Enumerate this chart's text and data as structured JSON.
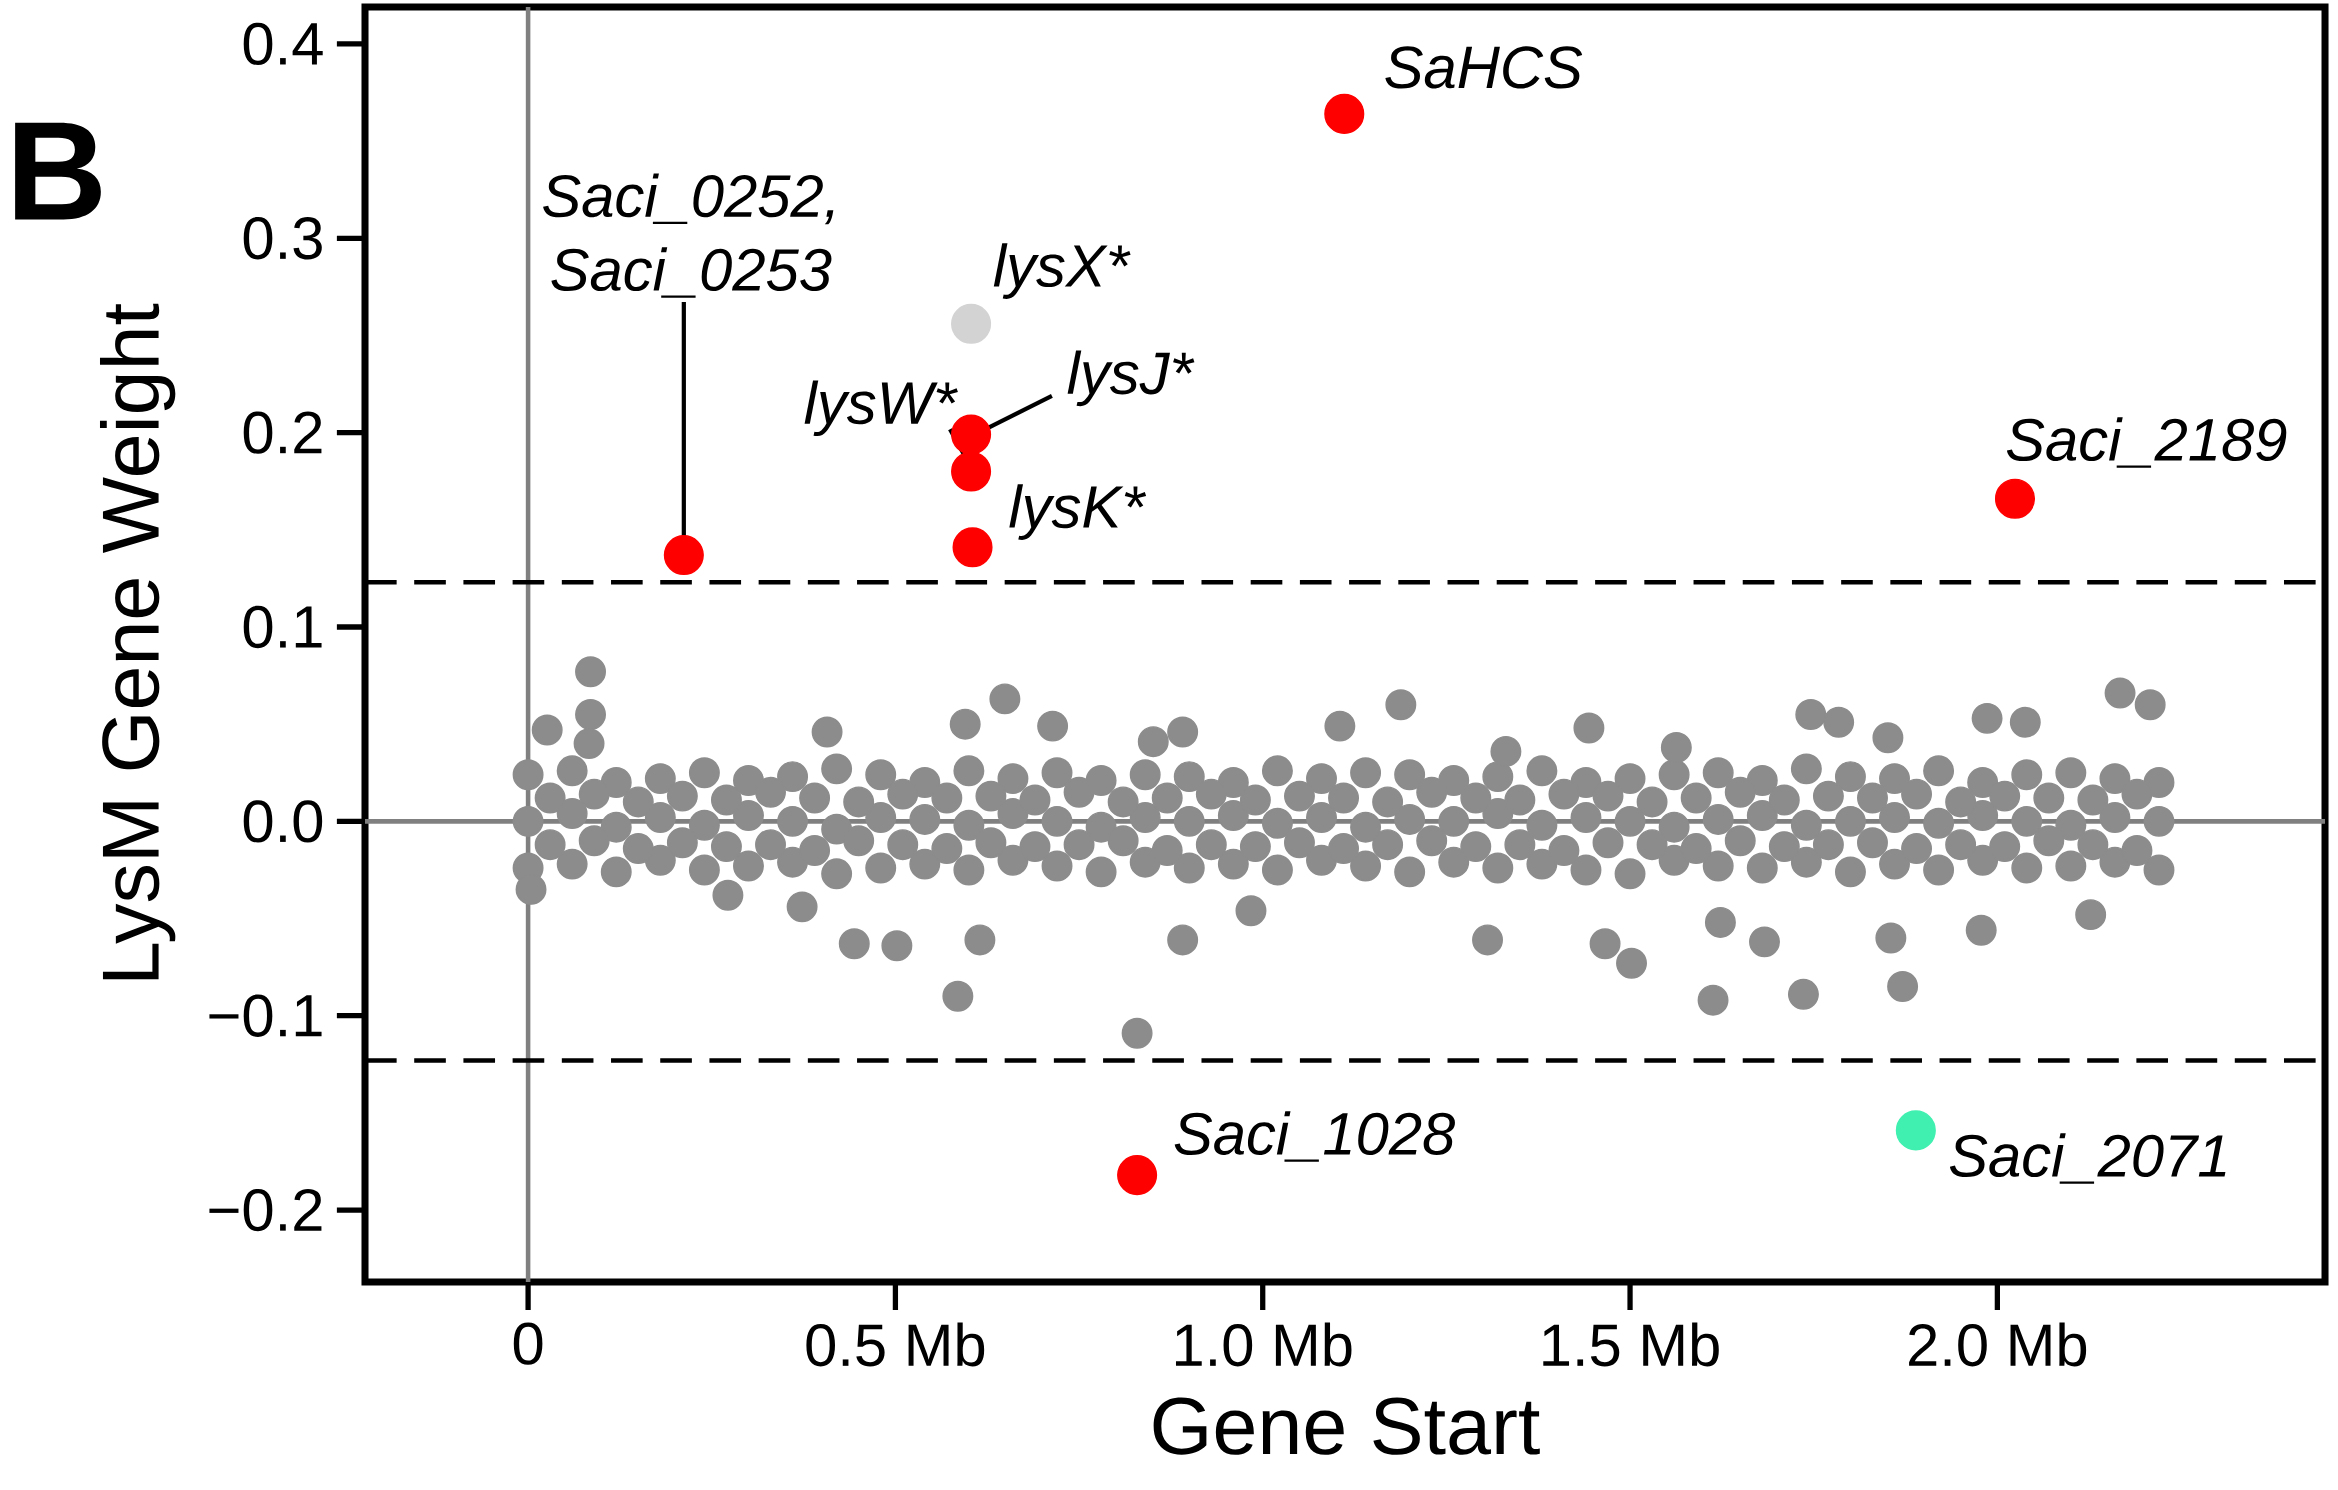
{
  "chart_data": {
    "type": "scatter",
    "xlabel": "Gene Start",
    "ylabel": "LysM Gene Weight",
    "xlim": [
      -0.222,
      2.446
    ],
    "ylim": [
      -0.237,
      0.419
    ],
    "xticks": [
      {
        "value": 0,
        "label": "0"
      },
      {
        "value": 0.5,
        "label": "0.5 Mb"
      },
      {
        "value": 1.0,
        "label": "1.0 Mb"
      },
      {
        "value": 1.5,
        "label": "1.5 Mb"
      },
      {
        "value": 2.0,
        "label": "2.0 Mb"
      }
    ],
    "yticks": [
      {
        "value": -0.2,
        "label": "−0.2"
      },
      {
        "value": -0.1,
        "label": "−0.1"
      },
      {
        "value": 0,
        "label": "0.0"
      },
      0.1,
      0.2,
      0.3,
      0.4
    ],
    "grid": false,
    "series": [
      {
        "color": "#8c8c8c",
        "x": [
          0.0,
          0.06,
          0.12,
          0.18,
          0.24,
          0.3,
          0.36,
          0.42,
          0.48,
          0.54,
          0.6,
          0.66,
          0.72,
          0.78,
          0.84,
          0.9,
          0.96,
          1.02,
          1.08,
          1.14,
          1.2,
          1.26,
          1.32,
          1.38,
          1.44,
          1.5,
          1.56,
          1.62,
          1.68,
          1.74,
          1.8,
          1.86,
          1.92,
          1.98,
          2.04,
          2.1,
          2.16,
          2.22,
          0.0,
          0.06,
          0.12,
          0.18,
          0.24,
          0.3,
          0.36,
          0.42,
          0.48,
          0.54,
          0.6,
          0.66,
          0.72,
          0.78,
          0.84,
          0.9,
          0.96,
          1.02,
          1.08,
          1.14,
          1.2,
          1.26,
          1.32,
          1.38,
          1.44,
          1.5,
          1.56,
          1.62,
          1.68,
          1.74,
          1.8,
          1.86,
          1.92,
          1.98,
          2.04,
          2.1,
          2.16,
          2.22,
          0.0,
          0.06,
          0.12,
          0.18,
          0.24,
          0.3,
          0.36,
          0.42,
          0.48,
          0.54,
          0.6,
          0.66,
          0.72,
          0.78,
          0.84,
          0.9,
          0.96,
          1.02,
          1.08,
          1.14,
          1.2,
          1.26,
          1.32,
          1.38,
          1.44,
          1.5,
          1.56,
          1.62,
          1.68,
          1.74,
          1.8,
          1.86,
          1.92,
          1.98,
          2.04,
          2.1,
          2.16,
          2.22,
          0.03,
          0.09,
          0.15,
          0.21,
          0.27,
          0.33,
          0.39,
          0.45,
          0.51,
          0.57,
          0.63,
          0.69,
          0.75,
          0.81,
          0.87,
          0.93,
          0.99,
          1.05,
          1.11,
          1.17,
          1.23,
          1.29,
          1.35,
          1.41,
          1.47,
          1.53,
          1.59,
          1.65,
          1.71,
          1.77,
          1.83,
          1.89,
          1.95,
          2.01,
          2.07,
          2.13,
          2.19,
          0.03,
          0.09,
          0.15,
          0.21,
          0.27,
          0.33,
          0.39,
          0.45,
          0.51,
          0.57,
          0.63,
          0.69,
          0.75,
          0.81,
          0.87,
          0.93,
          0.99,
          1.05,
          1.11,
          1.17,
          1.23,
          1.29,
          1.35,
          1.41,
          1.47,
          1.53,
          1.59,
          1.65,
          1.71,
          1.77,
          1.83,
          1.89,
          1.95,
          2.01,
          2.07,
          2.13,
          2.19,
          0.085,
          0.085,
          0.026,
          0.083,
          0.407,
          0.595,
          0.649,
          0.714,
          0.851,
          0.891,
          1.105,
          1.188,
          1.444,
          1.563,
          1.746,
          1.784,
          1.851,
          1.986,
          2.038,
          2.167,
          2.208,
          1.331,
          0.004,
          0.272,
          0.373,
          0.444,
          0.502,
          0.585,
          0.615,
          0.829,
          0.891,
          0.984,
          1.306,
          1.466,
          1.502,
          1.613,
          1.683,
          1.736,
          1.855,
          1.871,
          1.978,
          1.623,
          2.127
        ],
        "values": [
          0.024,
          0.026,
          0.02,
          0.022,
          0.025,
          0.021,
          0.023,
          0.027,
          0.024,
          0.02,
          0.026,
          0.022,
          0.025,
          0.021,
          0.024,
          0.023,
          0.02,
          0.026,
          0.022,
          0.025,
          0.024,
          0.021,
          0.023,
          0.026,
          0.02,
          0.022,
          0.024,
          0.025,
          0.021,
          0.027,
          0.023,
          0.022,
          0.026,
          0.02,
          0.024,
          0.025,
          0.022,
          0.02,
          0.0,
          0.004,
          -0.003,
          0.002,
          -0.002,
          0.003,
          0.0,
          -0.004,
          0.002,
          0.001,
          -0.002,
          0.004,
          0.0,
          -0.003,
          0.002,
          0.0,
          0.003,
          -0.001,
          0.002,
          -0.003,
          0.001,
          0.0,
          0.004,
          -0.002,
          0.002,
          0.0,
          -0.003,
          0.001,
          0.003,
          -0.002,
          0.0,
          0.002,
          -0.001,
          0.003,
          0.0,
          -0.002,
          0.002,
          0.0,
          -0.024,
          -0.022,
          -0.026,
          -0.02,
          -0.025,
          -0.023,
          -0.021,
          -0.027,
          -0.024,
          -0.022,
          -0.025,
          -0.02,
          -0.023,
          -0.026,
          -0.021,
          -0.024,
          -0.022,
          -0.025,
          -0.02,
          -0.023,
          -0.026,
          -0.021,
          -0.024,
          -0.022,
          -0.025,
          -0.027,
          -0.02,
          -0.023,
          -0.024,
          -0.021,
          -0.026,
          -0.022,
          -0.025,
          -0.02,
          -0.024,
          -0.023,
          -0.021,
          -0.025,
          0.012,
          0.014,
          0.01,
          0.013,
          0.011,
          0.015,
          0.012,
          0.01,
          0.014,
          0.012,
          0.013,
          0.011,
          0.015,
          0.01,
          0.012,
          0.014,
          0.011,
          0.013,
          0.012,
          0.01,
          0.015,
          0.012,
          0.011,
          0.014,
          0.013,
          0.01,
          0.012,
          0.015,
          0.011,
          0.013,
          0.012,
          0.014,
          0.01,
          0.013,
          0.012,
          0.011,
          0.014,
          -0.012,
          -0.01,
          -0.014,
          -0.011,
          -0.013,
          -0.012,
          -0.015,
          -0.01,
          -0.012,
          -0.014,
          -0.011,
          -0.013,
          -0.012,
          -0.01,
          -0.015,
          -0.012,
          -0.013,
          -0.011,
          -0.014,
          -0.012,
          -0.01,
          -0.013,
          -0.012,
          -0.015,
          -0.011,
          -0.012,
          -0.014,
          -0.01,
          -0.013,
          -0.012,
          -0.011,
          -0.014,
          -0.012,
          -0.013,
          -0.01,
          -0.012,
          -0.015,
          0.077,
          0.055,
          0.047,
          0.04,
          0.046,
          0.05,
          0.063,
          0.049,
          0.041,
          0.046,
          0.049,
          0.06,
          0.048,
          0.038,
          0.055,
          0.051,
          0.043,
          0.053,
          0.051,
          0.066,
          0.06,
          0.036,
          -0.035,
          -0.038,
          -0.044,
          -0.063,
          -0.064,
          -0.09,
          -0.061,
          -0.109,
          -0.061,
          -0.046,
          -0.061,
          -0.063,
          -0.073,
          -0.092,
          -0.062,
          -0.089,
          -0.06,
          -0.085,
          -0.056,
          -0.052,
          -0.048
        ]
      },
      {
        "color": "#ff0000",
        "x": [
          0.212,
          0.603,
          0.603,
          0.605,
          1.111,
          2.024,
          0.829
        ],
        "values": [
          0.137,
          0.199,
          0.18,
          0.141,
          0.364,
          0.166,
          -0.182
        ]
      },
      {
        "color": "#d3d3d3",
        "x": [
          0.603
        ],
        "values": [
          0.256
        ]
      },
      {
        "color": "#40f0b0",
        "x": [
          1.889
        ],
        "values": [
          -0.159
        ]
      }
    ],
    "ref_lines": [
      {
        "axis": "x",
        "value": 0,
        "color": "#808080",
        "line_style": "solid"
      },
      {
        "axis": "y",
        "value": 0,
        "color": "#808080",
        "line_style": "solid"
      },
      {
        "axis": "y",
        "value": 0.123,
        "color": "#000000",
        "line_style": "dashed"
      },
      {
        "axis": "y",
        "value": -0.123,
        "color": "#000000",
        "line_style": "dashed"
      }
    ],
    "annotations": [
      "B",
      {
        "text": "SaHCS",
        "x": 1.111,
        "y": 0.364
      },
      {
        "text": "Saci_0252, Saci_0253",
        "x": 0.212,
        "y": 0.137
      },
      {
        "text": "lysX*",
        "x": 0.603,
        "y": 0.256
      },
      {
        "text": "lysJ*",
        "x": 0.603,
        "y": 0.199
      },
      {
        "text": "lysW*",
        "x": 0.603,
        "y": 0.18
      },
      {
        "text": "lysK*",
        "x": 0.605,
        "y": 0.141
      },
      {
        "text": "Saci_2189",
        "x": 2.024,
        "y": 0.166
      },
      {
        "text": "Saci_1028",
        "x": 0.829,
        "y": -0.182
      },
      {
        "text": "Saci_2071",
        "x": 1.889,
        "y": -0.159
      }
    ]
  }
}
